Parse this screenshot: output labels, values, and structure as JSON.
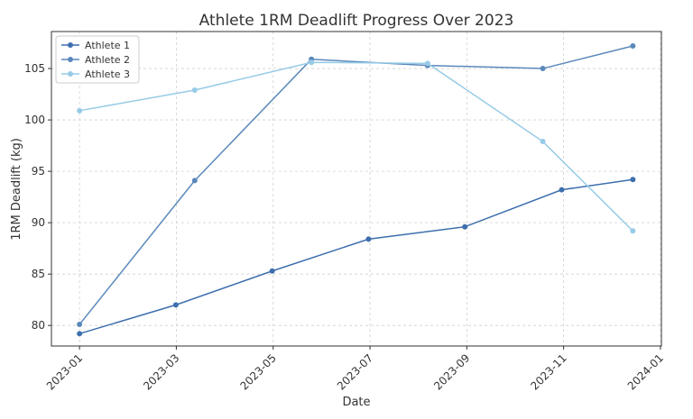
{
  "chart_data": {
    "type": "line",
    "title": "Athlete 1RM Deadlift Progress Over 2023",
    "x_label": "Date",
    "y_label": "1RM Deadlift (kg)",
    "series": [
      {
        "name": "Athlete 1",
        "color": "#3d6fae",
        "x": [
          0,
          1.99,
          3.98,
          5.97,
          7.96,
          9.96,
          11.43
        ],
        "values": [
          79.2,
          82.0,
          85.3,
          88.4,
          89.6,
          93.2,
          94.2
        ]
      },
      {
        "name": "Athlete 2",
        "color": "#5a88bb",
        "x": [
          0,
          2.38,
          4.79,
          7.19,
          9.57,
          11.43
        ],
        "values": [
          80.1,
          94.1,
          105.9,
          105.3,
          105.0,
          107.2
        ]
      },
      {
        "name": "Athlete 3",
        "color": "#97cbe6",
        "x": [
          0,
          2.38,
          4.79,
          7.19,
          9.57,
          11.43
        ],
        "values": [
          100.9,
          102.9,
          105.6,
          105.5,
          97.9,
          89.2
        ]
      }
    ],
    "xlim": [
      -0.58,
      12.02
    ],
    "xticks": [
      {
        "value": 0,
        "label": "2023-01"
      },
      {
        "value": 2,
        "label": "2023-03"
      },
      {
        "value": 4,
        "label": "2023-05"
      },
      {
        "value": 6,
        "label": "2023-07"
      },
      {
        "value": 8,
        "label": "2023-09"
      },
      {
        "value": 10,
        "label": "2023-11"
      },
      {
        "value": 12,
        "label": "2024-01"
      }
    ],
    "ylim": [
      78.0,
      108.6
    ],
    "yticks": [
      80,
      85,
      90,
      95,
      100,
      105
    ],
    "grid": true,
    "legend": "upper-left"
  }
}
